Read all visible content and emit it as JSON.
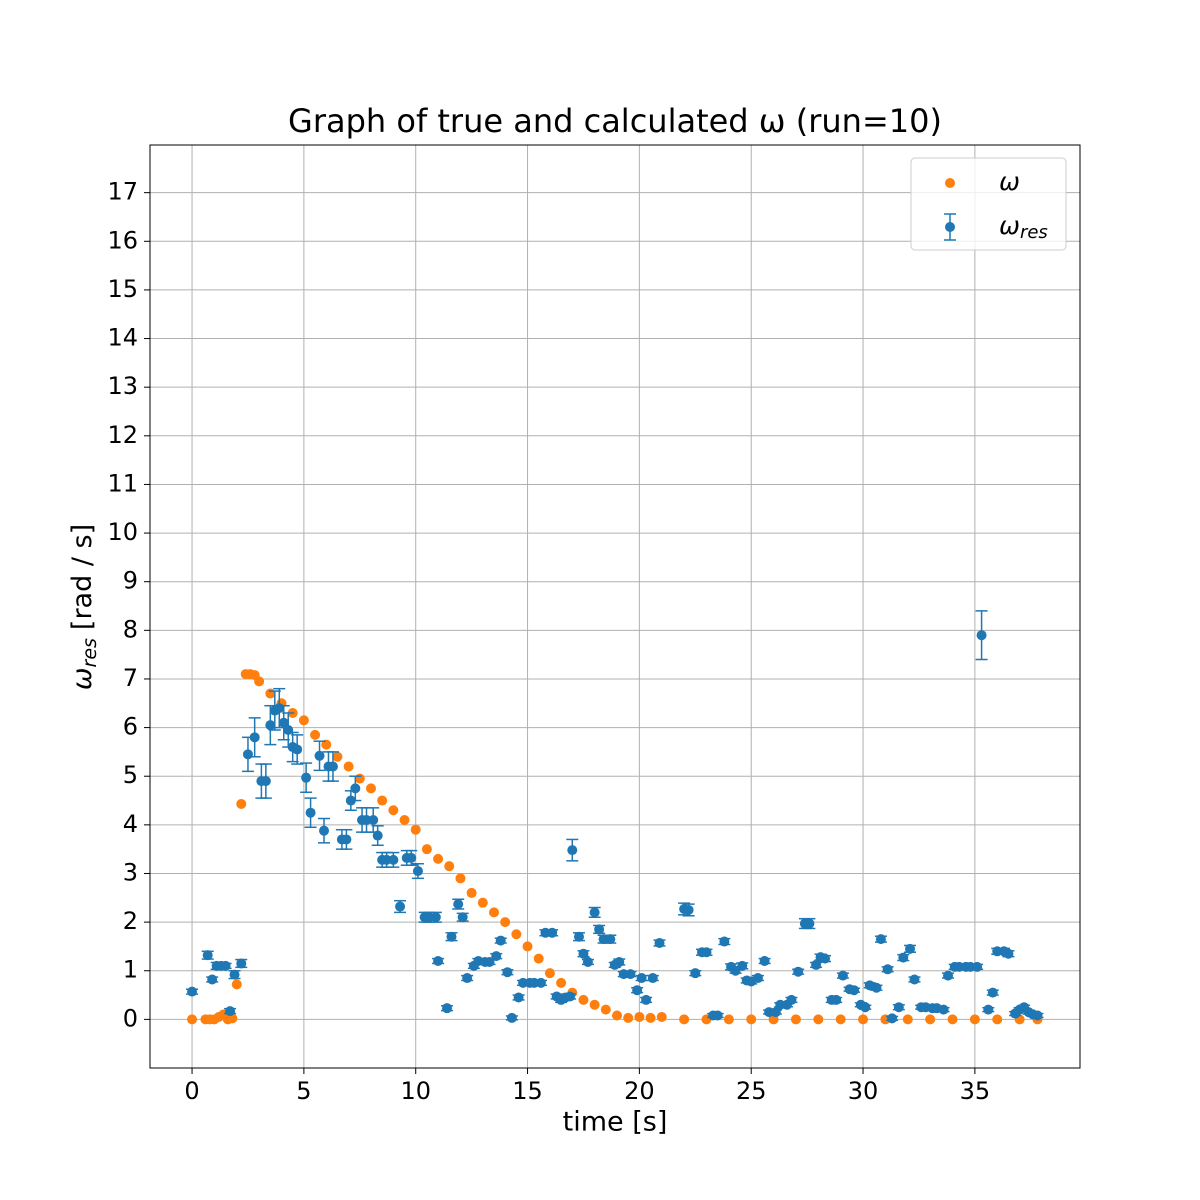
{
  "chart_data": {
    "type": "scatter",
    "title": "Graph of true and calculated ω (run=10)",
    "xlabel": "time [s]",
    "ylabel": [
      "ω",
      "res",
      "[rad / s]"
    ],
    "xlim": [
      -1.88,
      39.7
    ],
    "ylim": [
      -1.0,
      17.98
    ],
    "xticks": [
      0,
      5,
      10,
      15,
      20,
      25,
      30,
      35
    ],
    "yticks": [
      0,
      1,
      2,
      3,
      4,
      5,
      6,
      7,
      8,
      9,
      10,
      11,
      12,
      13,
      14,
      15,
      16,
      17
    ],
    "grid": true,
    "legend": "upper right",
    "series": [
      {
        "name": "ω",
        "color": "#ff7f0e",
        "x": [
          0,
          0.6,
          0.8,
          1.0,
          1.2,
          1.4,
          1.6,
          1.8,
          2.0,
          2.2,
          2.4,
          2.6,
          2.8,
          3.0,
          3.5,
          4.0,
          4.5,
          5.0,
          5.5,
          6.0,
          6.5,
          7.0,
          7.5,
          8.0,
          8.5,
          9.0,
          9.5,
          10.0,
          10.5,
          11.0,
          11.5,
          12.0,
          12.5,
          13.0,
          13.5,
          14.0,
          14.5,
          15.0,
          15.5,
          16.0,
          16.5,
          17.0,
          17.5,
          18.0,
          18.5,
          19.0,
          19.5,
          20.0,
          20.5,
          21.0,
          22,
          23,
          24,
          25,
          26,
          27,
          28,
          29,
          30,
          31,
          32,
          33,
          34,
          35,
          36,
          37,
          37.8
        ],
        "values": [
          0,
          0,
          0,
          0,
          0.05,
          0.1,
          0,
          0.02,
          0.72,
          4.43,
          7.1,
          7.1,
          7.08,
          6.95,
          6.7,
          6.5,
          6.3,
          6.15,
          5.85,
          5.65,
          5.4,
          5.2,
          4.95,
          4.75,
          4.5,
          4.3,
          4.1,
          3.9,
          3.5,
          3.3,
          3.15,
          2.9,
          2.6,
          2.4,
          2.2,
          2.0,
          1.75,
          1.5,
          1.25,
          0.95,
          0.75,
          0.55,
          0.4,
          0.3,
          0.2,
          0.08,
          0.03,
          0.05,
          0.03,
          0.05,
          0,
          0,
          0,
          0,
          0,
          0,
          0,
          0,
          0,
          0,
          0,
          0,
          0,
          0,
          0,
          0,
          0
        ]
      },
      {
        "name": "ω",
        "name_subscript": "res",
        "color": "#1f77b4",
        "x": [
          0,
          0.7,
          0.9,
          1.1,
          1.3,
          1.5,
          1.7,
          1.9,
          2.2,
          2.5,
          2.8,
          3.1,
          3.3,
          3.5,
          3.7,
          3.9,
          4.1,
          4.3,
          4.5,
          4.7,
          5.1,
          5.3,
          5.7,
          5.9,
          6.1,
          6.3,
          6.7,
          6.9,
          7.1,
          7.3,
          7.6,
          7.8,
          8.1,
          8.3,
          8.5,
          8.7,
          9.0,
          9.3,
          9.6,
          9.8,
          10.1,
          10.4,
          10.6,
          10.9,
          11.0,
          11.4,
          11.6,
          11.9,
          12.1,
          12.3,
          12.6,
          12.8,
          13.1,
          13.3,
          13.6,
          13.8,
          14.1,
          14.3,
          14.6,
          14.8,
          15.1,
          15.3,
          15.6,
          15.8,
          16.1,
          16.3,
          16.5,
          16.7,
          16.9,
          17.0,
          17.3,
          17.5,
          17.7,
          18.0,
          18.2,
          18.4,
          18.7,
          18.9,
          19.1,
          19.3,
          19.6,
          19.9,
          20.1,
          20.3,
          20.6,
          20.9,
          22.0,
          22.2,
          22.5,
          22.8,
          23.0,
          23.3,
          23.5,
          23.8,
          24.1,
          24.3,
          24.6,
          24.8,
          25.0,
          25.3,
          25.6,
          25.8,
          26.1,
          26.3,
          26.6,
          26.8,
          27.1,
          27.4,
          27.6,
          27.9,
          28.1,
          28.3,
          28.6,
          28.8,
          29.1,
          29.4,
          29.6,
          29.9,
          30.1,
          30.3,
          30.6,
          30.8,
          31.1,
          31.3,
          31.6,
          31.8,
          32.1,
          32.3,
          32.6,
          32.8,
          33.1,
          33.3,
          33.6,
          33.8,
          34.1,
          34.3,
          34.6,
          34.8,
          35.1,
          35.3,
          35.6,
          35.8,
          36.0,
          36.3,
          36.5,
          36.8,
          37.0,
          37.2,
          37.4,
          37.6,
          37.8
        ],
        "values": [
          0.57,
          1.32,
          0.82,
          1.1,
          1.1,
          1.1,
          0.17,
          0.92,
          1.15,
          5.45,
          5.8,
          4.9,
          4.9,
          6.05,
          6.35,
          6.4,
          6.1,
          5.95,
          5.6,
          5.55,
          4.97,
          4.25,
          5.42,
          3.88,
          5.2,
          5.2,
          3.7,
          3.7,
          4.5,
          4.75,
          4.1,
          4.1,
          4.1,
          3.78,
          3.28,
          3.28,
          3.28,
          2.32,
          3.32,
          3.32,
          3.05,
          2.1,
          2.1,
          2.1,
          1.2,
          0.23,
          1.7,
          2.37,
          2.1,
          0.85,
          1.1,
          1.2,
          1.18,
          1.18,
          1.3,
          1.62,
          0.97,
          0.03,
          0.45,
          0.75,
          0.75,
          0.75,
          0.75,
          1.78,
          1.78,
          0.47,
          0.4,
          0.45,
          0.47,
          3.48,
          1.7,
          1.35,
          1.18,
          2.2,
          1.85,
          1.65,
          1.65,
          1.12,
          1.18,
          0.93,
          0.93,
          0.6,
          0.85,
          0.4,
          0.85,
          1.57,
          2.27,
          2.25,
          0.95,
          1.38,
          1.38,
          0.08,
          0.08,
          1.6,
          1.08,
          1.0,
          1.1,
          0.8,
          0.78,
          0.85,
          1.2,
          0.15,
          0.15,
          0.3,
          0.3,
          0.4,
          0.98,
          1.97,
          1.97,
          1.12,
          1.28,
          1.25,
          0.4,
          0.4,
          0.9,
          0.62,
          0.6,
          0.3,
          0.25,
          0.7,
          0.65,
          1.65,
          1.03,
          0.02,
          0.25,
          1.27,
          1.45,
          0.82,
          0.25,
          0.25,
          0.23,
          0.23,
          0.2,
          0.9,
          1.08,
          1.08,
          1.08,
          1.08,
          1.08,
          7.9,
          0.2,
          0.55,
          1.4,
          1.4,
          1.35,
          0.12,
          0.2,
          0.25,
          0.15,
          0.1,
          0.08
        ],
        "errors": [
          0.05,
          0.08,
          0.05,
          0.07,
          0.05,
          0.05,
          0.05,
          0.08,
          0.08,
          0.35,
          0.4,
          0.35,
          0.35,
          0.4,
          0.4,
          0.4,
          0.35,
          0.35,
          0.3,
          0.3,
          0.3,
          0.3,
          0.3,
          0.25,
          0.3,
          0.3,
          0.2,
          0.2,
          0.2,
          0.25,
          0.25,
          0.25,
          0.25,
          0.2,
          0.15,
          0.15,
          0.15,
          0.12,
          0.15,
          0.15,
          0.15,
          0.1,
          0.1,
          0.1,
          0.05,
          0.05,
          0.08,
          0.1,
          0.08,
          0.05,
          0.05,
          0.05,
          0.05,
          0.05,
          0.05,
          0.05,
          0.05,
          0.04,
          0.05,
          0.05,
          0.05,
          0.05,
          0.05,
          0.06,
          0.06,
          0.05,
          0.05,
          0.05,
          0.05,
          0.22,
          0.08,
          0.06,
          0.05,
          0.1,
          0.08,
          0.08,
          0.08,
          0.05,
          0.06,
          0.05,
          0.05,
          0.05,
          0.05,
          0.05,
          0.05,
          0.06,
          0.12,
          0.12,
          0.05,
          0.06,
          0.06,
          0.04,
          0.04,
          0.06,
          0.06,
          0.05,
          0.06,
          0.05,
          0.05,
          0.05,
          0.05,
          0.04,
          0.04,
          0.04,
          0.04,
          0.05,
          0.05,
          0.1,
          0.1,
          0.05,
          0.06,
          0.06,
          0.05,
          0.05,
          0.05,
          0.04,
          0.04,
          0.04,
          0.04,
          0.05,
          0.05,
          0.06,
          0.05,
          0.04,
          0.05,
          0.06,
          0.07,
          0.05,
          0.04,
          0.04,
          0.04,
          0.04,
          0.04,
          0.05,
          0.05,
          0.05,
          0.05,
          0.05,
          0.05,
          0.5,
          0.04,
          0.05,
          0.06,
          0.06,
          0.06,
          0.04,
          0.04,
          0.04,
          0.04,
          0.04,
          0.04
        ]
      }
    ]
  }
}
